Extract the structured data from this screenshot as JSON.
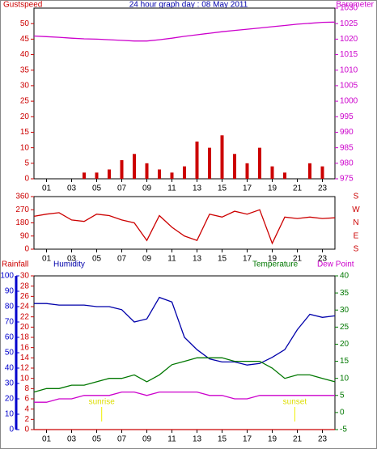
{
  "chart_data": [
    {
      "type": "combo",
      "title": "24 hour graph day : 08 May 2011",
      "x": [
        0,
        1,
        2,
        3,
        4,
        5,
        6,
        7,
        8,
        9,
        10,
        11,
        12,
        13,
        14,
        15,
        16,
        17,
        18,
        19,
        20,
        21,
        22,
        23,
        24
      ],
      "xlim": [
        0,
        24
      ],
      "xticks": [
        {
          "value": 1,
          "label": "01"
        },
        {
          "value": 3,
          "label": "03"
        },
        {
          "value": 5,
          "label": "05"
        },
        {
          "value": 7,
          "label": "07"
        },
        {
          "value": 9,
          "label": "09"
        },
        {
          "value": 11,
          "label": "11"
        },
        {
          "value": 13,
          "label": "13"
        },
        {
          "value": 15,
          "label": "15"
        },
        {
          "value": 17,
          "label": "17"
        },
        {
          "value": 19,
          "label": "19"
        },
        {
          "value": 21,
          "label": "21"
        },
        {
          "value": 23,
          "label": "23"
        }
      ],
      "ylim": [
        0,
        55
      ],
      "yticks": [
        0,
        5,
        10,
        15,
        20,
        25,
        30,
        35,
        40,
        45,
        50
      ],
      "y2lim": [
        975,
        1030
      ],
      "y2ticks": [
        975,
        980,
        985,
        990,
        995,
        1000,
        1005,
        1010,
        1015,
        1020,
        1025,
        1030
      ],
      "series": [
        {
          "name": "Gustspeed",
          "color": "#cc0000",
          "kind": "bar",
          "values": [
            0,
            0,
            0,
            0,
            2,
            2,
            3,
            6,
            8,
            5,
            3,
            2,
            4,
            12,
            10,
            14,
            8,
            5,
            10,
            4,
            2,
            0,
            5,
            4,
            0
          ]
        },
        {
          "name": "Barometer",
          "color": "#cc00cc",
          "axis": "y2",
          "values": [
            1021,
            1020.8,
            1020.6,
            1020.3,
            1020.1,
            1020,
            1019.8,
            1019.6,
            1019.4,
            1019.4,
            1019.8,
            1020.3,
            1020.9,
            1021.4,
            1021.9,
            1022.4,
            1022.8,
            1023.2,
            1023.6,
            1024,
            1024.4,
            1024.8,
            1025.1,
            1025.4,
            1025.5
          ]
        }
      ]
    },
    {
      "type": "line",
      "x": [
        0,
        1,
        2,
        3,
        4,
        5,
        6,
        7,
        8,
        9,
        10,
        11,
        12,
        13,
        14,
        15,
        16,
        17,
        18,
        19,
        20,
        21,
        22,
        23,
        24
      ],
      "xlim": [
        0,
        24
      ],
      "xticks": [
        {
          "value": 1,
          "label": "01"
        },
        {
          "value": 3,
          "label": "03"
        },
        {
          "value": 5,
          "label": "05"
        },
        {
          "value": 7,
          "label": "07"
        },
        {
          "value": 9,
          "label": "09"
        },
        {
          "value": 11,
          "label": "11"
        },
        {
          "value": 13,
          "label": "13"
        },
        {
          "value": 15,
          "label": "15"
        },
        {
          "value": 17,
          "label": "17"
        },
        {
          "value": 19,
          "label": "19"
        },
        {
          "value": 21,
          "label": "21"
        },
        {
          "value": 23,
          "label": "23"
        }
      ],
      "ylim": [
        0,
        360
      ],
      "yticks": [
        0,
        90,
        180,
        270,
        360
      ],
      "compass": [
        "S",
        "W",
        "N",
        "E",
        "S"
      ],
      "series": [
        {
          "color": "#cc0000",
          "values": [
            225,
            240,
            250,
            200,
            190,
            240,
            230,
            200,
            180,
            60,
            230,
            150,
            90,
            60,
            240,
            220,
            260,
            240,
            270,
            40,
            220,
            210,
            220,
            210,
            215
          ]
        }
      ]
    },
    {
      "type": "combo",
      "x": [
        0,
        1,
        2,
        3,
        4,
        5,
        6,
        7,
        8,
        9,
        10,
        11,
        12,
        13,
        14,
        15,
        16,
        17,
        18,
        19,
        20,
        21,
        22,
        23,
        24
      ],
      "xlim": [
        0,
        24
      ],
      "xticks": [
        {
          "value": 1,
          "label": "01"
        },
        {
          "value": 3,
          "label": "03"
        },
        {
          "value": 5,
          "label": "05"
        },
        {
          "value": 7,
          "label": "07"
        },
        {
          "value": 9,
          "label": "09"
        },
        {
          "value": 11,
          "label": "11"
        },
        {
          "value": 13,
          "label": "13"
        },
        {
          "value": 15,
          "label": "15"
        },
        {
          "value": 17,
          "label": "17"
        },
        {
          "value": 19,
          "label": "19"
        },
        {
          "value": 21,
          "label": "21"
        },
        {
          "value": 23,
          "label": "23"
        }
      ],
      "ylim": [
        0,
        30
      ],
      "yticks": [
        0,
        2,
        4,
        6,
        8,
        10,
        12,
        14,
        16,
        18,
        20,
        22,
        24,
        26,
        28,
        30
      ],
      "y3lim": [
        0,
        100
      ],
      "y3ticks": [
        0,
        10,
        20,
        30,
        40,
        50,
        60,
        70,
        80,
        90,
        100
      ],
      "y2lim": [
        -5,
        40
      ],
      "y2ticks": [
        -5,
        0,
        5,
        10,
        15,
        20,
        25,
        30,
        35,
        40
      ],
      "series": [
        {
          "name": "Rainfall",
          "color": "#cc0000",
          "values": [
            0,
            0,
            0,
            0,
            0,
            0,
            0,
            0,
            0,
            0,
            0,
            0,
            0,
            0,
            0,
            0,
            0,
            0,
            0,
            0,
            0,
            0,
            0,
            0,
            0
          ]
        },
        {
          "name": "Humidity",
          "color": "#0000aa",
          "axis": "y3",
          "values": [
            82,
            82,
            81,
            81,
            81,
            80,
            80,
            78,
            70,
            72,
            86,
            83,
            60,
            52,
            46,
            44,
            44,
            42,
            43,
            47,
            52,
            65,
            75,
            73,
            74
          ]
        },
        {
          "name": "Temperature",
          "color": "#007700",
          "axis": "y2",
          "values": [
            6,
            7,
            7,
            8,
            8,
            9,
            10,
            10,
            11,
            9,
            11,
            14,
            15,
            16,
            16,
            16,
            15,
            15,
            15,
            13,
            10,
            11,
            11,
            10,
            9
          ]
        },
        {
          "name": "Dew Point",
          "color": "#cc00cc",
          "axis": "y2",
          "values": [
            3,
            3,
            4,
            4,
            5,
            5,
            5,
            6,
            6,
            5,
            6,
            6,
            6,
            6,
            5,
            5,
            4,
            4,
            5,
            5,
            5,
            5,
            5,
            5,
            5
          ]
        }
      ],
      "annotations": [
        {
          "text": "sunrise",
          "x": 5.4
        },
        {
          "text": "sunset",
          "x": 20.8
        }
      ]
    }
  ]
}
